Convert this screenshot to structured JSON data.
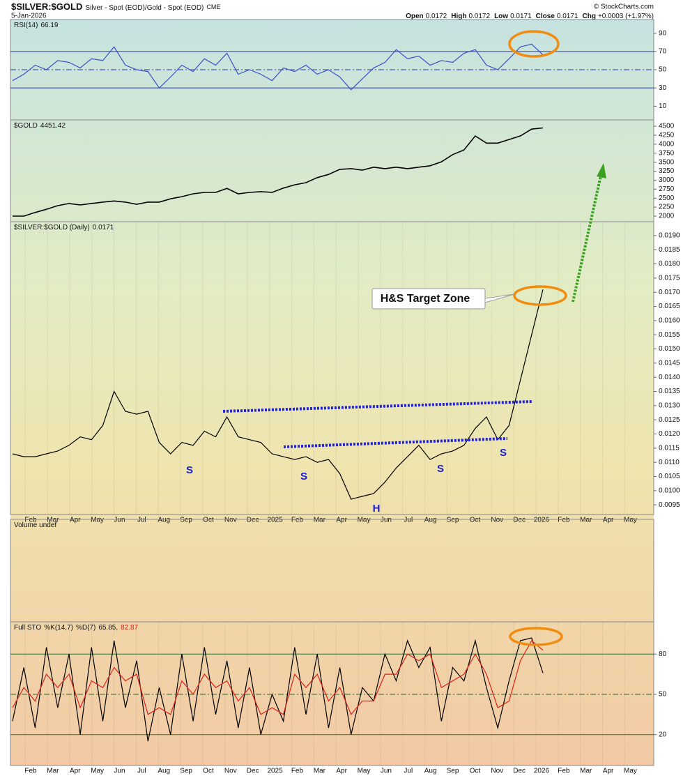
{
  "header": {
    "symbol": "$SILVER:$GOLD",
    "description": "Silver - Spot (EOD)/Gold - Spot (EOD)",
    "exchange": "CME",
    "credit": "© StockCharts.com",
    "date": "5-Jan-2026",
    "ohlc": [
      {
        "label": "Open",
        "value": "0.0172"
      },
      {
        "label": "High",
        "value": "0.0172"
      },
      {
        "label": "Low",
        "value": "0.0171"
      },
      {
        "label": "Close",
        "value": "0.0171"
      },
      {
        "label": "Chg",
        "value": "+0.0003 (+1.97%)"
      }
    ]
  },
  "chart_data": [
    {
      "type": "line",
      "ylim": [
        -5,
        105
      ],
      "yticks": [
        10,
        30,
        50,
        70,
        90
      ],
      "levels": [
        70,
        50,
        30
      ],
      "series": [
        {
          "name": "RSI(14)",
          "color": "#3a50c8",
          "values": [
            38,
            45,
            55,
            50,
            60,
            58,
            52,
            62,
            60,
            75,
            55,
            50,
            48,
            30,
            42,
            55,
            48,
            62,
            55,
            68,
            45,
            50,
            45,
            38,
            52,
            48,
            55,
            45,
            50,
            42,
            28,
            40,
            52,
            58,
            72,
            62,
            65,
            55,
            60,
            58,
            68,
            72,
            55,
            50,
            62,
            75,
            78,
            66.19
          ]
        }
      ]
    },
    {
      "type": "line",
      "ylim": [
        1845,
        4675
      ],
      "yticks": [
        2000,
        2250,
        2500,
        2750,
        3000,
        3250,
        3500,
        3750,
        4000,
        4250,
        4500
      ],
      "series": [
        {
          "name": "$GOLD",
          "color": "#000000",
          "values": [
            2000,
            2000,
            2100,
            2190,
            2290,
            2350,
            2310,
            2350,
            2390,
            2420,
            2390,
            2330,
            2390,
            2390,
            2480,
            2540,
            2620,
            2660,
            2660,
            2770,
            2620,
            2660,
            2680,
            2660,
            2780,
            2870,
            2930,
            3070,
            3160,
            3300,
            3320,
            3280,
            3360,
            3320,
            3360,
            3320,
            3360,
            3400,
            3510,
            3710,
            3840,
            4230,
            4030,
            4030,
            4130,
            4230,
            4420,
            4451.42
          ]
        }
      ]
    },
    {
      "type": "line",
      "ylim": [
        0.00916,
        0.01949
      ],
      "yticks": [
        {
          "value": 0.0095,
          "label": "0.0095"
        },
        {
          "value": 0.01,
          "label": "0.0100"
        },
        {
          "value": 0.0105,
          "label": "0.0105"
        },
        {
          "value": 0.011,
          "label": "0.0110"
        },
        {
          "value": 0.0115,
          "label": "0.0115"
        },
        {
          "value": 0.012,
          "label": "0.0120"
        },
        {
          "value": 0.0125,
          "label": "0.0125"
        },
        {
          "value": 0.013,
          "label": "0.0130"
        },
        {
          "value": 0.0135,
          "label": "0.0135"
        },
        {
          "value": 0.014,
          "label": "0.0140"
        },
        {
          "value": 0.0145,
          "label": "0.0145"
        },
        {
          "value": 0.015,
          "label": "0.0150"
        },
        {
          "value": 0.0155,
          "label": "0.0155"
        },
        {
          "value": 0.016,
          "label": "0.0160"
        },
        {
          "value": 0.0165,
          "label": "0.0165"
        },
        {
          "value": 0.017,
          "label": "0.0170"
        },
        {
          "value": 0.0175,
          "label": "0.0175"
        },
        {
          "value": 0.018,
          "label": "0.0180"
        },
        {
          "value": 0.0185,
          "label": "0.0185"
        },
        {
          "value": 0.019,
          "label": "0.0190"
        }
      ],
      "x_labels": [
        "Feb",
        "Mar",
        "Apr",
        "May",
        "Jun",
        "Jul",
        "Aug",
        "Sep",
        "Oct",
        "Nov",
        "Dec",
        "2025",
        "Feb",
        "Mar",
        "Apr",
        "May",
        "Jun",
        "Jul",
        "Aug",
        "Sep",
        "Oct",
        "Nov",
        "Dec",
        "2026",
        "Feb",
        "Mar",
        "Apr",
        "May"
      ],
      "series": [
        {
          "name": "$SILVER:$GOLD (Daily)",
          "color": "#000000",
          "values": [
            0.0113,
            0.0112,
            0.0112,
            0.0113,
            0.0114,
            0.0116,
            0.0119,
            0.0118,
            0.0123,
            0.0135,
            0.0128,
            0.0127,
            0.0128,
            0.0117,
            0.0113,
            0.0117,
            0.0116,
            0.0121,
            0.0119,
            0.0126,
            0.0119,
            0.0118,
            0.0117,
            0.0113,
            0.0112,
            0.0111,
            0.0112,
            0.011,
            0.0111,
            0.0106,
            0.0097,
            0.0098,
            0.0099,
            0.0103,
            0.0108,
            0.0112,
            0.0116,
            0.0111,
            0.0113,
            0.0114,
            0.0116,
            0.0122,
            0.0126,
            0.0118,
            0.0123,
            0.0139,
            0.0155,
            0.0171
          ]
        }
      ]
    },
    {
      "type": "volume",
      "title": "Volume undef"
    },
    {
      "type": "line",
      "title": "Full STO",
      "separator": ",",
      "ylim": [
        -3,
        104
      ],
      "yticks": [
        20,
        50,
        80
      ],
      "levels": [
        80,
        50,
        20
      ],
      "x_labels": [
        "Feb",
        "Mar",
        "Apr",
        "May",
        "Jun",
        "Jul",
        "Aug",
        "Sep",
        "Oct",
        "Nov",
        "Dec",
        "2025",
        "Feb",
        "Mar",
        "Apr",
        "May",
        "Jun",
        "Jul",
        "Aug",
        "Sep",
        "Oct",
        "Nov",
        "Dec",
        "2026",
        "Feb",
        "Mar",
        "Apr",
        "May"
      ],
      "series": [
        {
          "name": "%K(14,7)",
          "color": "#000000",
          "values": [
            30,
            70,
            25,
            85,
            40,
            80,
            20,
            85,
            30,
            90,
            40,
            75,
            15,
            55,
            20,
            80,
            30,
            85,
            35,
            75,
            25,
            70,
            20,
            50,
            30,
            85,
            35,
            80,
            25,
            70,
            20,
            55,
            45,
            80,
            60,
            90,
            70,
            85,
            30,
            70,
            60,
            90,
            55,
            25,
            60,
            90,
            92,
            65.85
          ]
        },
        {
          "name": "%D(7)",
          "color": "#e0201a",
          "values": [
            40,
            55,
            45,
            65,
            55,
            65,
            40,
            60,
            55,
            70,
            60,
            65,
            35,
            40,
            35,
            60,
            50,
            65,
            55,
            60,
            45,
            55,
            35,
            40,
            35,
            65,
            55,
            65,
            45,
            55,
            35,
            45,
            45,
            65,
            65,
            80,
            75,
            80,
            55,
            60,
            65,
            80,
            65,
            40,
            45,
            75,
            90,
            82.87
          ]
        }
      ]
    }
  ],
  "annotations": {
    "callout": "H&S Target Zone",
    "shoulders": [
      "S",
      "S",
      "S",
      "S"
    ],
    "head": "H"
  }
}
